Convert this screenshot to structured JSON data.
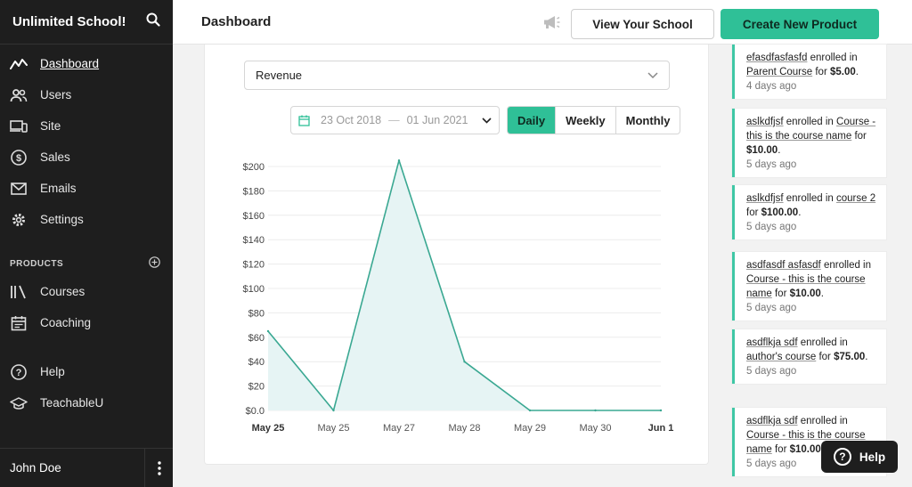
{
  "sidebar": {
    "title": "Unlimited School!",
    "nav": [
      {
        "label": "Dashboard",
        "icon": "activity-icon"
      },
      {
        "label": "Users",
        "icon": "users-icon"
      },
      {
        "label": "Site",
        "icon": "devices-icon"
      },
      {
        "label": "Sales",
        "icon": "dollar-icon"
      },
      {
        "label": "Emails",
        "icon": "mail-icon"
      },
      {
        "label": "Settings",
        "icon": "gear-icon"
      }
    ],
    "products_section": "PRODUCTS",
    "products": [
      {
        "label": "Courses",
        "icon": "library-icon"
      },
      {
        "label": "Coaching",
        "icon": "calendar-icon"
      }
    ],
    "extras": [
      {
        "label": "Help",
        "icon": "help-icon"
      },
      {
        "label": "TeachableU",
        "icon": "graduation-cap-icon"
      }
    ],
    "user": "John Doe"
  },
  "topbar": {
    "title": "Dashboard",
    "view_school": "View Your School",
    "create_product": "Create New Product"
  },
  "filters": {
    "metric": "Revenue",
    "date_start": "23 Oct 2018",
    "date_sep": "—",
    "date_end": "01 Jun 2021",
    "periods": [
      "Daily",
      "Weekly",
      "Monthly"
    ],
    "active_period": "Daily"
  },
  "chart_data": {
    "type": "area",
    "x": [
      "May 25",
      "May 25",
      "May 27",
      "May 28",
      "May 29",
      "May 30",
      "Jun 1"
    ],
    "points": [
      {
        "x": "May 25",
        "y": 65
      },
      {
        "x": "May 25",
        "y": 0
      },
      {
        "x": "May 27",
        "y": 205
      },
      {
        "x": "May 28",
        "y": 40
      },
      {
        "x": "May 29",
        "y": 0
      },
      {
        "x": "May 30",
        "y": 0
      },
      {
        "x": "Jun 1",
        "y": 0
      }
    ],
    "yticks": [
      "$200",
      "$180",
      "$160",
      "$140",
      "$120",
      "$100",
      "$80",
      "$60",
      "$40",
      "$20",
      "$0.0"
    ],
    "ylim": [
      0,
      200
    ],
    "grid": true,
    "line_color": "#3aa892",
    "fill_color": "#e6f4f4",
    "bold_ticks": [
      "May 25",
      "Jun 1"
    ]
  },
  "feed": [
    {
      "parts": [
        {
          "t": "efasdfasfasfd",
          "link": true
        },
        {
          "t": " enrolled in "
        },
        {
          "t": "Parent Course",
          "link": true
        },
        {
          "t": " for "
        },
        {
          "t": "$5.00",
          "bold": true
        },
        {
          "t": "."
        }
      ],
      "when": "4 days ago"
    },
    {
      "parts": [
        {
          "t": "aslkdfjsf",
          "link": true
        },
        {
          "t": " enrolled in "
        },
        {
          "t": "Course - this is the course name",
          "link": true
        },
        {
          "t": " for "
        },
        {
          "t": "$10.00",
          "bold": true
        },
        {
          "t": "."
        }
      ],
      "when": "5 days ago"
    },
    {
      "parts": [
        {
          "t": "aslkdfjsf",
          "link": true
        },
        {
          "t": " enrolled in "
        },
        {
          "t": "course 2",
          "link": true
        },
        {
          "t": " for "
        },
        {
          "t": "$100.00",
          "bold": true
        },
        {
          "t": "."
        }
      ],
      "when": "5 days ago"
    },
    {
      "parts": [
        {
          "t": "asdfasdf asfasdf",
          "link": true
        },
        {
          "t": " enrolled in "
        },
        {
          "t": "Course - this is the course name",
          "link": true
        },
        {
          "t": " for "
        },
        {
          "t": "$10.00",
          "bold": true
        },
        {
          "t": "."
        }
      ],
      "when": "5 days ago"
    },
    {
      "parts": [
        {
          "t": "asdflkja sdf",
          "link": true
        },
        {
          "t": " enrolled in "
        },
        {
          "t": "author's course",
          "link": true
        },
        {
          "t": " for "
        },
        {
          "t": "$75.00",
          "bold": true
        },
        {
          "t": "."
        }
      ],
      "when": "5 days ago"
    },
    {
      "parts": [
        {
          "t": "asdflkja sdf",
          "link": true
        },
        {
          "t": " enrolled in "
        },
        {
          "t": "Course - this is the course name",
          "link": true
        },
        {
          "t": " for "
        },
        {
          "t": "$10.00",
          "bold": true
        },
        {
          "t": "."
        }
      ],
      "when": "5 days ago"
    }
  ],
  "help_button": "Help"
}
